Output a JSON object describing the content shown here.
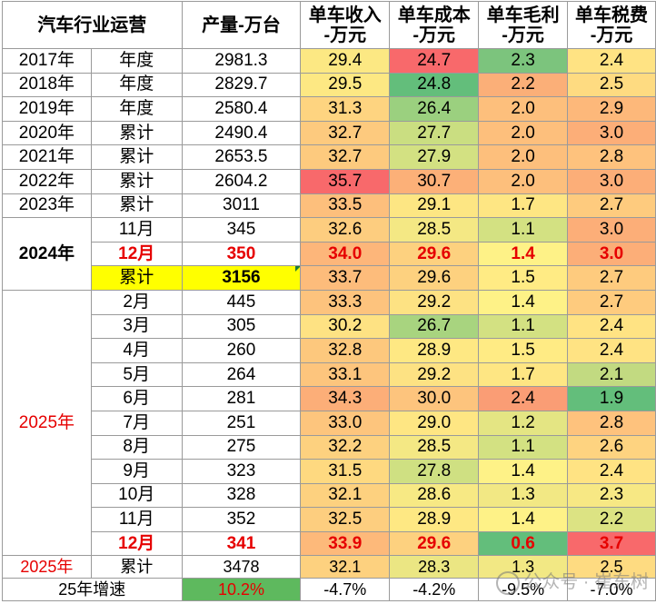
{
  "header": {
    "industry_ops": "汽车行业运营",
    "production": "产量-万台",
    "revenue": [
      "单车收入",
      "-万元"
    ],
    "cost": [
      "单车成本",
      "-万元"
    ],
    "margin": [
      "单车毛利",
      "-万元"
    ],
    "tax": [
      "单车税费",
      "-万元"
    ]
  },
  "rows": [
    {
      "year": "2017年",
      "period": "年度",
      "prod": "2981.3",
      "rev": "29.4",
      "cost": "24.7",
      "margin": "2.3",
      "tax": "2.4",
      "c": [
        "#fce883",
        "#f8696b",
        "#7cc47d",
        "#ffe383"
      ]
    },
    {
      "year": "2018年",
      "period": "年度",
      "prod": "2829.7",
      "rev": "29.5",
      "cost": "24.8",
      "margin": "2.2",
      "tax": "2.5",
      "c": [
        "#fde883",
        "#63be7b",
        "#fbaf78",
        "#fedb81"
      ]
    },
    {
      "year": "2019年",
      "period": "年度",
      "prod": "2580.4",
      "rev": "31.3",
      "cost": "26.4",
      "margin": "2.0",
      "tax": "2.9",
      "c": [
        "#fed480",
        "#9bd07f",
        "#fdbf7c",
        "#fdb87a"
      ]
    },
    {
      "year": "2020年",
      "period": "累计",
      "prod": "2490.4",
      "rev": "32.7",
      "cost": "27.7",
      "margin": "2.0",
      "tax": "3.0",
      "c": [
        "#fdca7e",
        "#cade81",
        "#fdbf7c",
        "#fcae78"
      ]
    },
    {
      "year": "2021年",
      "period": "累计",
      "prod": "2653.5",
      "rev": "32.7",
      "cost": "27.9",
      "margin": "2.0",
      "tax": "2.8",
      "c": [
        "#fdca7e",
        "#d3e182",
        "#fdbf7c",
        "#fec27d"
      ]
    },
    {
      "year": "2022年",
      "period": "累计",
      "prod": "2604.2",
      "rev": "35.7",
      "cost": "30.7",
      "margin": "2.0",
      "tax": "3.0",
      "c": [
        "#f8696b",
        "#fcb078",
        "#fdbf7c",
        "#fcae78"
      ]
    },
    {
      "year": "2023年",
      "period": "累计",
      "prod": "3011",
      "rev": "33.5",
      "cost": "29.1",
      "margin": "1.7",
      "tax": "2.7",
      "c": [
        "#fdbf7c",
        "#fde683",
        "#fee683",
        "#fecb7e"
      ]
    },
    {
      "year": "2024年",
      "period": "11月",
      "prod": "345",
      "rev": "32.6",
      "cost": "28.5",
      "margin": "1.1",
      "tax": "3.0",
      "c": [
        "#fdcd7f",
        "#f4e884",
        "#d3e182",
        "#fcae78"
      ]
    },
    {
      "year": "",
      "period": "12月",
      "prod": "350",
      "rev": "34.0",
      "cost": "29.6",
      "margin": "1.4",
      "tax": "3.0",
      "c": [
        "#fdb67a",
        "#fdd17f",
        "#fef287",
        "#fcae78"
      ],
      "red": true
    },
    {
      "year": "",
      "period": "累计",
      "prod": "3156",
      "rev": "33.7",
      "cost": "29.6",
      "margin": "1.5",
      "tax": "2.7",
      "c": [
        "#fdbc7b",
        "#fdd17f",
        "#ffeb84",
        "#fecb7e"
      ],
      "yellow": true
    },
    {
      "year": "2025年",
      "period": "2月",
      "prod": "445",
      "rev": "33.3",
      "cost": "29.2",
      "margin": "1.4",
      "tax": "2.7",
      "c": [
        "#fdc37d",
        "#fde283",
        "#fef287",
        "#fecb7e"
      ]
    },
    {
      "year": "",
      "period": "3月",
      "prod": "305",
      "rev": "30.2",
      "cost": "26.7",
      "margin": "1.1",
      "tax": "2.4",
      "c": [
        "#fee283",
        "#a8d47f",
        "#d3e182",
        "#ffe383"
      ]
    },
    {
      "year": "",
      "period": "4月",
      "prod": "260",
      "rev": "32.8",
      "cost": "28.9",
      "margin": "1.5",
      "tax": "2.4",
      "c": [
        "#fdc87d",
        "#fee883",
        "#ffeb84",
        "#ffe383"
      ]
    },
    {
      "year": "",
      "period": "5月",
      "prod": "264",
      "rev": "33.1",
      "cost": "29.2",
      "margin": "1.7",
      "tax": "2.1",
      "c": [
        "#fdc57d",
        "#fde283",
        "#fee683",
        "#c2da81"
      ]
    },
    {
      "year": "",
      "period": "6月",
      "prod": "281",
      "rev": "34.3",
      "cost": "30.0",
      "margin": "2.4",
      "tax": "1.9",
      "c": [
        "#fcae78",
        "#fdc47d",
        "#fa9d75",
        "#63be7b"
      ]
    },
    {
      "year": "",
      "period": "7月",
      "prod": "251",
      "rev": "33.0",
      "cost": "29.0",
      "margin": "1.2",
      "tax": "2.8",
      "c": [
        "#fdc57d",
        "#fee683",
        "#e4e583",
        "#fec27d"
      ]
    },
    {
      "year": "",
      "period": "8月",
      "prod": "275",
      "rev": "32.2",
      "cost": "28.5",
      "margin": "1.1",
      "tax": "2.6",
      "c": [
        "#fdd17f",
        "#f4e884",
        "#d3e182",
        "#fed380"
      ]
    },
    {
      "year": "",
      "period": "9月",
      "prod": "323",
      "rev": "31.5",
      "cost": "27.8",
      "margin": "1.4",
      "tax": "2.4",
      "c": [
        "#fed980",
        "#cfe082",
        "#fef287",
        "#ffe383"
      ]
    },
    {
      "year": "",
      "period": "10月",
      "prod": "328",
      "rev": "32.1",
      "cost": "28.6",
      "margin": "1.3",
      "tax": "2.3",
      "c": [
        "#fdd17f",
        "#f7e984",
        "#f2e884",
        "#f7e884"
      ]
    },
    {
      "year": "",
      "period": "11月",
      "prod": "352",
      "rev": "32.5",
      "cost": "28.9",
      "margin": "1.4",
      "tax": "2.2",
      "c": [
        "#fdce7f",
        "#fee883",
        "#fef287",
        "#dce383"
      ]
    },
    {
      "year": "",
      "period": "12月",
      "prod": "341",
      "rev": "33.9",
      "cost": "29.6",
      "margin": "0.6",
      "tax": "3.7",
      "c": [
        "#fdb97a",
        "#fdd17f",
        "#63be7b",
        "#f8696b"
      ],
      "red": true
    },
    {
      "year": "2025年",
      "period": "累计",
      "prod": "3478",
      "rev": "32.1",
      "cost": "28.3",
      "margin": "1.3",
      "tax": "2.5",
      "c": [
        "#fdd17f",
        "#ebe683",
        "#f2e884",
        "#fedb81"
      ]
    }
  ],
  "yoy": {
    "label": "25年增速",
    "prod": "10.2%",
    "rev": "-4.7%",
    "cost": "-4.2%",
    "margin": "-9.5%",
    "tax": "-7.0%"
  },
  "watermark": "公众号 · 崔东树"
}
